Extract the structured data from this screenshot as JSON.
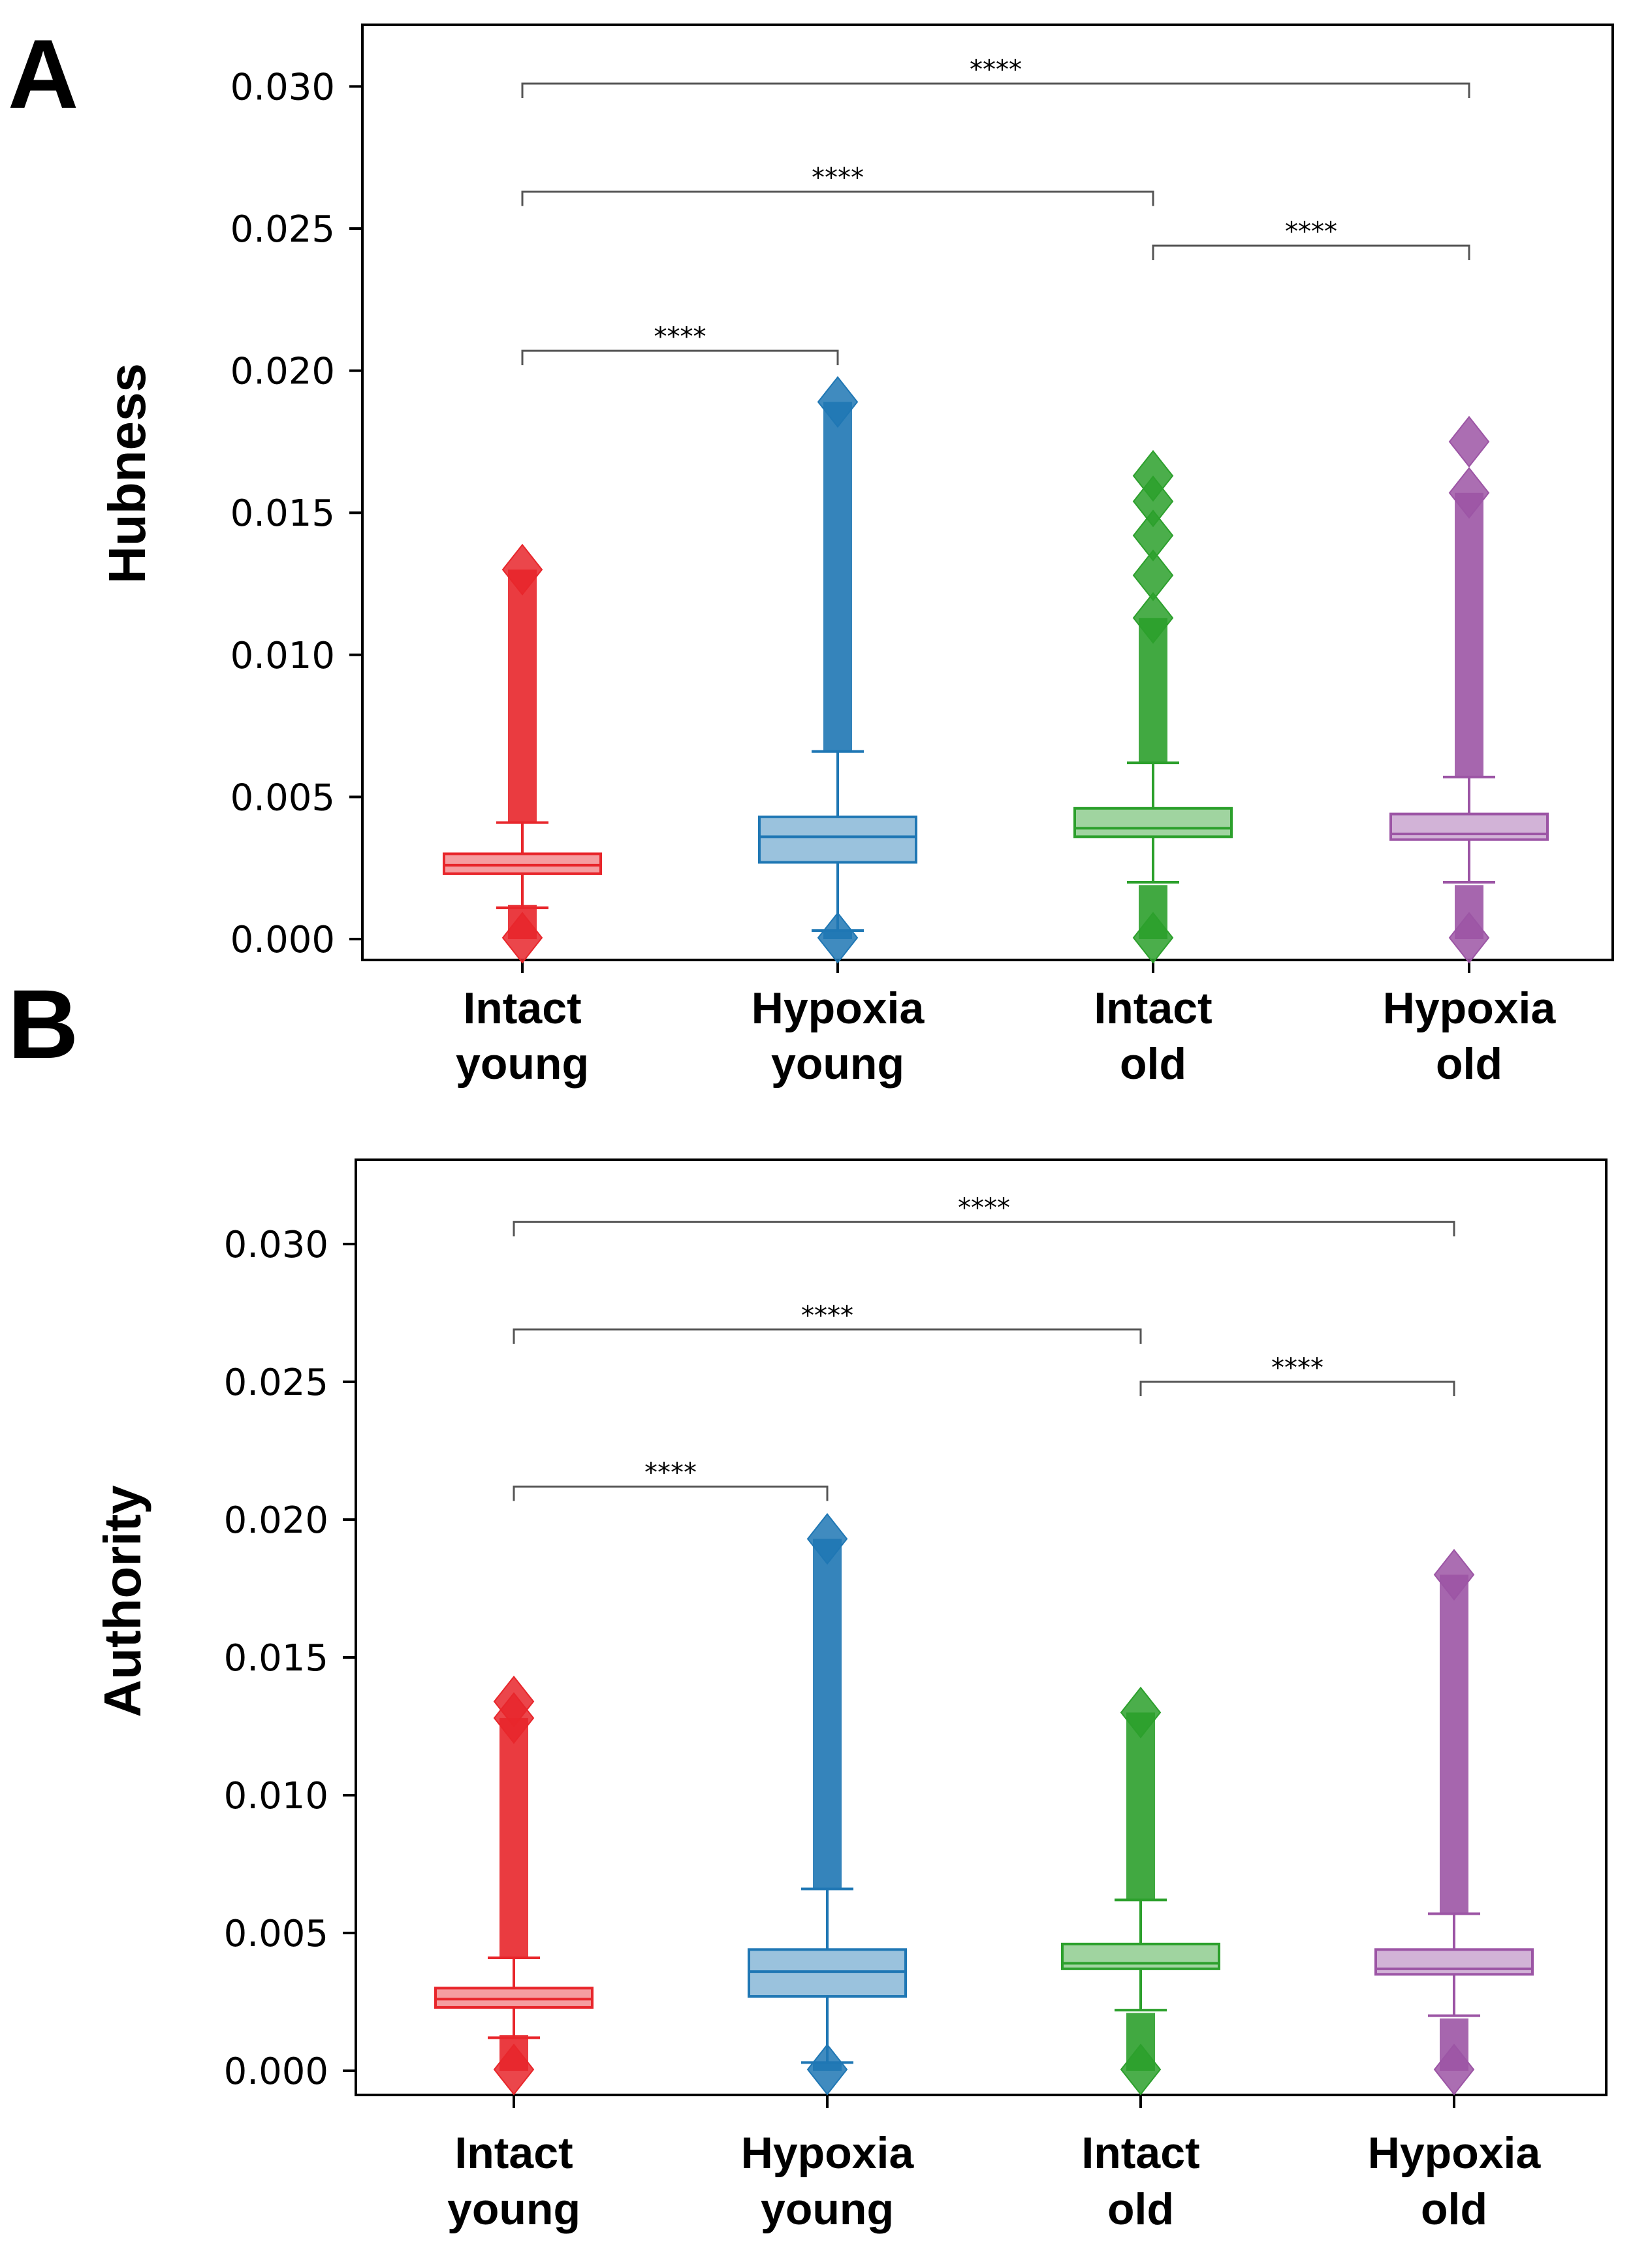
{
  "figure": {
    "panel_labels": [
      "A",
      "B"
    ]
  },
  "chart_data": [
    {
      "type": "box",
      "panel": "A",
      "title": "",
      "xlabel": "",
      "ylabel": "Hubness",
      "ylim": [
        -0.0008,
        0.0324
      ],
      "yticks": [
        0.0,
        0.005,
        0.01,
        0.015,
        0.02,
        0.025,
        0.03
      ],
      "ytick_labels": [
        "0.000",
        "0.005",
        "0.010",
        "0.015",
        "0.020",
        "0.025",
        "0.030"
      ],
      "categories": [
        {
          "line1": "Intact",
          "line2": "young"
        },
        {
          "line1": "Hypoxia",
          "line2": "young"
        },
        {
          "line1": "Intact",
          "line2": "old"
        },
        {
          "line1": "Hypoxia",
          "line2": "old"
        }
      ],
      "colors": [
        "#e8262b",
        "#1f77b4",
        "#2ca02c",
        "#9c55a5"
      ],
      "boxes": [
        {
          "whislo": 0.0011,
          "q1": 0.0023,
          "med": 0.0026,
          "q3": 0.003,
          "whishi": 0.0041,
          "flier_low_max": 0.0012,
          "flier_high_min": 0.0041,
          "flier_max": 0.013,
          "isolated_fliers": []
        },
        {
          "whislo": 0.0003,
          "q1": 0.0027,
          "med": 0.0036,
          "q3": 0.0043,
          "whishi": 0.0066,
          "flier_low_max": 0.0003,
          "flier_high_min": 0.0066,
          "flier_max": 0.0189,
          "isolated_fliers": []
        },
        {
          "whislo": 0.002,
          "q1": 0.0036,
          "med": 0.0039,
          "q3": 0.0046,
          "whishi": 0.0062,
          "flier_low_max": 0.0019,
          "flier_high_min": 0.0062,
          "flier_max": 0.0113,
          "isolated_fliers": [
            0.0128,
            0.0142,
            0.0154,
            0.0163
          ]
        },
        {
          "whislo": 0.002,
          "q1": 0.0035,
          "med": 0.0037,
          "q3": 0.0044,
          "whishi": 0.0057,
          "flier_low_max": 0.0019,
          "flier_high_min": 0.0057,
          "flier_max": 0.0157,
          "isolated_fliers": [
            0.0175
          ]
        }
      ],
      "significance": [
        {
          "from": 0,
          "to": 1,
          "y": 0.0207,
          "text": "****"
        },
        {
          "from": 2,
          "to": 3,
          "y": 0.0244,
          "text": "****"
        },
        {
          "from": 0,
          "to": 2,
          "y": 0.0263,
          "text": "****"
        },
        {
          "from": 0,
          "to": 3,
          "y": 0.0301,
          "text": "****"
        }
      ]
    },
    {
      "type": "box",
      "panel": "B",
      "title": "",
      "xlabel": "",
      "ylabel": "Authority",
      "ylim": [
        -0.0008,
        0.0324
      ],
      "yticks": [
        0.0,
        0.005,
        0.01,
        0.015,
        0.02,
        0.025,
        0.03
      ],
      "ytick_labels": [
        "0.000",
        "0.005",
        "0.010",
        "0.015",
        "0.020",
        "0.025",
        "0.030"
      ],
      "categories": [
        {
          "line1": "Intact",
          "line2": "young"
        },
        {
          "line1": "Hypoxia",
          "line2": "young"
        },
        {
          "line1": "Intact",
          "line2": "old"
        },
        {
          "line1": "Hypoxia",
          "line2": "old"
        }
      ],
      "colors": [
        "#e8262b",
        "#1f77b4",
        "#2ca02c",
        "#9c55a5"
      ],
      "boxes": [
        {
          "whislo": 0.0012,
          "q1": 0.0023,
          "med": 0.0026,
          "q3": 0.003,
          "whishi": 0.0041,
          "flier_low_max": 0.0013,
          "flier_high_min": 0.0041,
          "flier_max": 0.0128,
          "isolated_fliers": [
            0.0134
          ]
        },
        {
          "whislo": 0.0003,
          "q1": 0.0027,
          "med": 0.0036,
          "q3": 0.0044,
          "whishi": 0.0066,
          "flier_low_max": 0.0003,
          "flier_high_min": 0.0066,
          "flier_max": 0.0193,
          "isolated_fliers": []
        },
        {
          "whislo": 0.0022,
          "q1": 0.0037,
          "med": 0.0039,
          "q3": 0.0046,
          "whishi": 0.0062,
          "flier_low_max": 0.0021,
          "flier_high_min": 0.0062,
          "flier_max": 0.013,
          "isolated_fliers": []
        },
        {
          "whislo": 0.002,
          "q1": 0.0035,
          "med": 0.0037,
          "q3": 0.0044,
          "whishi": 0.0057,
          "flier_low_max": 0.0019,
          "flier_high_min": 0.0057,
          "flier_max": 0.018,
          "isolated_fliers": []
        }
      ],
      "significance": [
        {
          "from": 0,
          "to": 1,
          "y": 0.0212,
          "text": "****"
        },
        {
          "from": 2,
          "to": 3,
          "y": 0.025,
          "text": "****"
        },
        {
          "from": 0,
          "to": 2,
          "y": 0.0269,
          "text": "****"
        },
        {
          "from": 0,
          "to": 3,
          "y": 0.0308,
          "text": "****"
        }
      ]
    }
  ]
}
